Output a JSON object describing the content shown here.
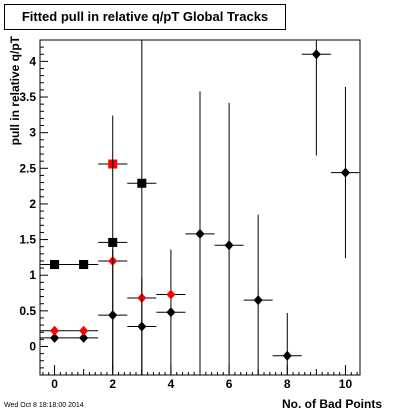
{
  "chart_data": {
    "type": "scatter",
    "title": "Fitted pull in relative q/pT  Global Tracks",
    "xlabel": "No. of Bad Points",
    "ylabel": "pull in relative q/pT",
    "footer": "Wed Oct  8 18:18:00 2014",
    "xlim": [
      -0.5,
      10.5
    ],
    "ylim": [
      -0.4,
      4.3
    ],
    "xticks": [
      "0",
      "2",
      "4",
      "6",
      "8",
      "10"
    ],
    "yticks": [
      "0",
      "0.5",
      "1",
      "1.5",
      "2",
      "2.5",
      "3",
      "3.5",
      "4"
    ],
    "grid": false,
    "series": [
      {
        "marker": "diamond",
        "color": "#000000",
        "points": [
          {
            "x": 0,
            "y": 0.12,
            "xerr": 0.5,
            "yerr": 0.06
          },
          {
            "x": 1,
            "y": 0.12,
            "xerr": 0.5,
            "yerr": 0.06
          },
          {
            "x": 2,
            "y": 0.44,
            "xerr": 0.5,
            "yerr": 0.92
          },
          {
            "x": 3,
            "y": 0.28,
            "xerr": 0.5,
            "yerr": 0.68
          },
          {
            "x": 4,
            "y": 0.48,
            "xerr": 0.5,
            "yerr": 0.88
          },
          {
            "x": 5,
            "y": 1.58,
            "xerr": 0.5,
            "yerr": 2.0
          },
          {
            "x": 6,
            "y": 1.42,
            "xerr": 0.5,
            "yerr": 2.0
          },
          {
            "x": 7,
            "y": 0.65,
            "xerr": 0.5,
            "yerr": 1.2
          },
          {
            "x": 8,
            "y": -0.13,
            "xerr": 0.5,
            "yerr": 0.6
          },
          {
            "x": 9,
            "y": 4.1,
            "xerr": 0.5,
            "yerr": 1.42
          },
          {
            "x": 10,
            "y": 2.44,
            "xerr": 0.5,
            "yerr": 1.2
          }
        ]
      },
      {
        "marker": "diamond",
        "color": "#ff0000",
        "points": [
          {
            "x": 0,
            "y": 0.22,
            "xerr": 0.5,
            "yerr": 0.05
          },
          {
            "x": 1,
            "y": 0.22,
            "xerr": 0.5,
            "yerr": 0.05
          },
          {
            "x": 2,
            "y": 1.2,
            "xerr": 0.5,
            "yerr": 0.05
          },
          {
            "x": 3,
            "y": 0.68,
            "xerr": 0.5,
            "yerr": 0.05
          },
          {
            "x": 4,
            "y": 0.73,
            "xerr": 0.5,
            "yerr": 0.05
          }
        ]
      },
      {
        "marker": "square",
        "color": "#ff0000",
        "points": [
          {
            "x": 0,
            "y": 1.15,
            "xerr": 0.5,
            "yerr": 0.03
          },
          {
            "x": 1,
            "y": 1.15,
            "xerr": 0.5,
            "yerr": 0.03
          },
          {
            "x": 2,
            "y": 2.56,
            "xerr": 0.5,
            "yerr": 0.03
          }
        ]
      },
      {
        "marker": "square",
        "color": "#000000",
        "points": [
          {
            "x": 0,
            "y": 1.15,
            "xerr": 0.5,
            "yerr": 0.0
          },
          {
            "x": 1,
            "y": 1.15,
            "xerr": 0.5,
            "yerr": 0.0
          },
          {
            "x": 2,
            "y": 1.46,
            "xerr": 0.5,
            "yerr": 1.78
          },
          {
            "x": 3,
            "y": 2.29,
            "xerr": 0.5,
            "yerr": 2.7
          }
        ]
      }
    ]
  }
}
